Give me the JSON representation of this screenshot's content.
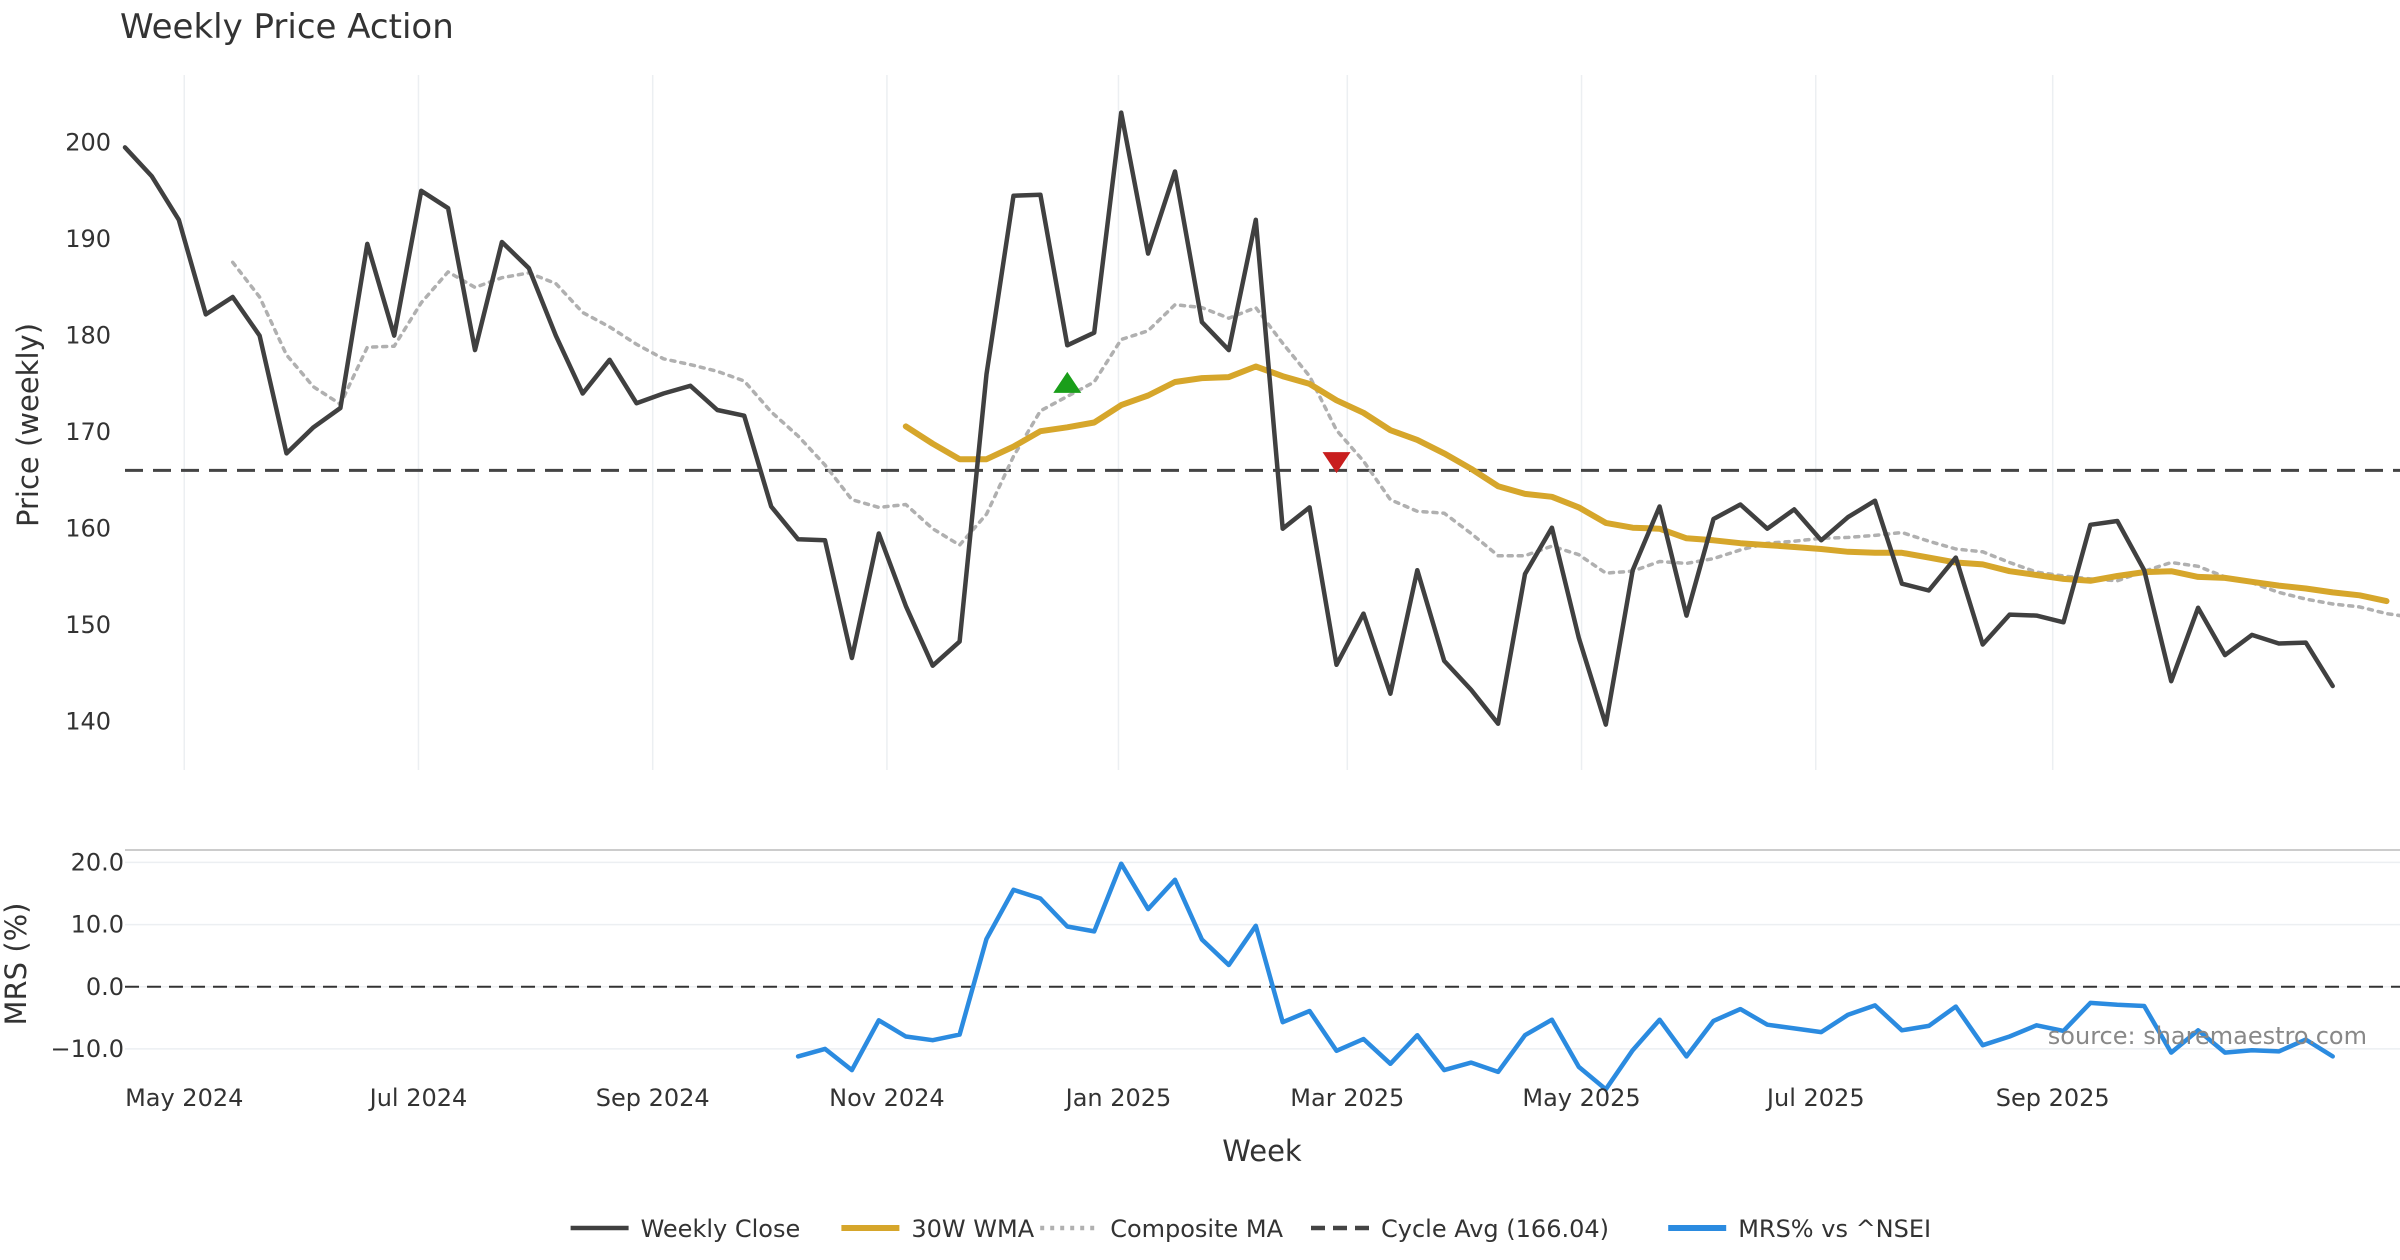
{
  "colors": {
    "close": "#404040",
    "wma": "#d6a62b",
    "composite": "#b0b0b0",
    "cycle": "#444444",
    "mrs": "#2b8be0",
    "buy_marker": "#1a9e1a",
    "sell_marker": "#c81e1e",
    "grid": "#eceff2"
  },
  "chart_data": [
    {
      "type": "line",
      "title": "Weekly Price Action",
      "ylabel": "Price (weekly)",
      "xlabel": "",
      "ylim": [
        135,
        207
      ],
      "y_ticks": [
        140,
        150,
        160,
        170,
        180,
        190,
        200
      ],
      "x_week_range": [
        0,
        84.5
      ],
      "series": [
        {
          "name": "Weekly Close",
          "start_week": 0,
          "values": [
            199.5,
            196.5,
            192,
            182.2,
            184,
            180,
            167.8,
            170.5,
            172.5,
            189.5,
            180,
            195,
            193.2,
            178.5,
            189.7,
            187,
            180,
            174,
            177.5,
            173,
            174,
            174.8,
            172.3,
            171.7,
            162.3,
            158.9,
            158.8,
            146.6,
            159.5,
            152,
            145.8,
            148.3,
            176,
            194.5,
            194.6,
            179,
            180.3,
            203.1,
            188.5,
            197,
            181.4,
            178.5,
            192,
            160,
            162.2,
            145.9,
            151.2,
            142.9,
            155.7,
            146.3,
            143.3,
            139.8,
            155.3,
            160.1,
            148.7,
            139.7,
            155.7,
            162.3,
            151,
            161,
            162.5,
            160,
            162,
            158.8,
            161.2,
            162.9,
            154.3,
            153.6,
            157,
            148,
            151.1,
            151,
            150.3,
            160.4,
            160.8,
            155.7,
            144.2,
            151.8,
            146.9,
            149,
            148.1,
            148.2,
            143.7
          ]
        },
        {
          "name": "30W WMA",
          "start_week": 29,
          "values": [
            170.6,
            168.8,
            167.2,
            167.2,
            168.5,
            170.1,
            170.5,
            171,
            172.8,
            173.8,
            175.2,
            175.6,
            175.7,
            176.8,
            175.8,
            175,
            173.3,
            172,
            170.2,
            169.2,
            167.8,
            166.2,
            164.4,
            163.6,
            163.3,
            162.2,
            160.6,
            160.1,
            160,
            159,
            158.8,
            158.5,
            158.3,
            158.1,
            157.9,
            157.6,
            157.5,
            157.5,
            157,
            156.5,
            156.3,
            155.6,
            155.2,
            154.8,
            154.6,
            155.1,
            155.5,
            155.6,
            155,
            154.9,
            154.5,
            154.1,
            153.8,
            153.4,
            153.1,
            152.5
          ]
        },
        {
          "name": "Composite MA",
          "start_week": 4,
          "values": [
            187.6,
            184,
            178,
            174.7,
            172.9,
            178.8,
            178.9,
            183.4,
            186.6,
            185,
            186,
            186.5,
            185.4,
            182.4,
            180.9,
            179.1,
            177.6,
            177,
            176.3,
            175.3,
            172.1,
            169.6,
            166.6,
            163,
            162.2,
            162.5,
            160,
            158.3,
            161.5,
            167.5,
            172.2,
            173.7,
            175.2,
            179.6,
            180.5,
            183.2,
            182.9,
            181.8,
            182.9,
            179.2,
            175.8,
            170.2,
            167,
            163,
            161.8,
            161.6,
            159.5,
            157.2,
            157.2,
            158.2,
            157.3,
            155.4,
            155.6,
            156.6,
            156.4,
            156.9,
            157.8,
            158.5,
            158.7,
            159,
            159.1,
            159.3,
            159.6,
            158.7,
            157.9,
            157.6,
            156.5,
            155.5,
            155.1,
            154.8,
            154.6,
            155.6,
            156.5,
            156.1,
            155,
            154.4,
            153.4,
            152.7,
            152.2,
            151.9,
            151.2,
            150.8
          ]
        },
        {
          "name": "Cycle Avg (166.04)",
          "constant": 166.04
        }
      ],
      "markers": [
        {
          "kind": "buy",
          "shape": "triangle-up",
          "week": 35,
          "value": 175
        },
        {
          "kind": "sell",
          "shape": "triangle-down",
          "week": 45,
          "value": 167
        }
      ],
      "x_ticks": [
        {
          "label": "May 2024",
          "week": 2.2
        },
        {
          "label": "Jul 2024",
          "week": 10.9
        },
        {
          "label": "Sep 2024",
          "week": 19.6
        },
        {
          "label": "Nov 2024",
          "week": 28.3
        },
        {
          "label": "Jan 2025",
          "week": 36.9
        },
        {
          "label": "Mar 2025",
          "week": 45.4
        },
        {
          "label": "May 2025",
          "week": 54.1
        },
        {
          "label": "Jul 2025",
          "week": 62.8
        },
        {
          "label": "Sep 2025",
          "week": 71.6
        }
      ]
    },
    {
      "type": "line",
      "title": "",
      "ylabel": "MRS (%)",
      "xlabel": "Week",
      "ylim": [
        -15,
        22
      ],
      "y_ticks": [
        -10,
        0,
        10,
        20
      ],
      "y_tick_labels": [
        "−10.0",
        "0.0",
        "10.0",
        "20.0"
      ],
      "series": [
        {
          "name": "MRS% vs ^NSEI",
          "start_week": 25,
          "values": [
            -11.2,
            -10,
            -13.4,
            -5.4,
            -8,
            -8.6,
            -7.7,
            7.7,
            15.6,
            14.2,
            9.7,
            8.9,
            19.8,
            12.5,
            17.2,
            7.6,
            3.5,
            9.8,
            -5.7,
            -3.9,
            -10.3,
            -8.4,
            -12.4,
            -7.8,
            -13.4,
            -12.2,
            -13.7,
            -7.8,
            -5.3,
            -12.9,
            -16.5,
            -10.2,
            -5.3,
            -11.2,
            -5.5,
            -3.6,
            -6.1,
            -6.7,
            -7.3,
            -4.5,
            -3,
            -7,
            -6.3,
            -3.2,
            -9.4,
            -8,
            -6.2,
            -7.1,
            -2.6,
            -2.9,
            -3.1,
            -10.6,
            -7,
            -10.6,
            -10.2,
            -10.4,
            -8.5,
            -11.2
          ]
        }
      ],
      "reference_lines": [
        {
          "name": "zero",
          "value": 0
        }
      ]
    }
  ],
  "source_text": "source: sharemaestro.com",
  "legend": [
    {
      "label": "Weekly Close",
      "style": "solid",
      "color_key": "close"
    },
    {
      "label": "30W WMA",
      "style": "solid-thick",
      "color_key": "wma"
    },
    {
      "label": "Composite MA",
      "style": "dotted",
      "color_key": "composite"
    },
    {
      "label": "Cycle Avg (166.04)",
      "style": "dashed",
      "color_key": "cycle"
    },
    {
      "label": "MRS% vs ^NSEI",
      "style": "solid-thick",
      "color_key": "mrs"
    }
  ]
}
